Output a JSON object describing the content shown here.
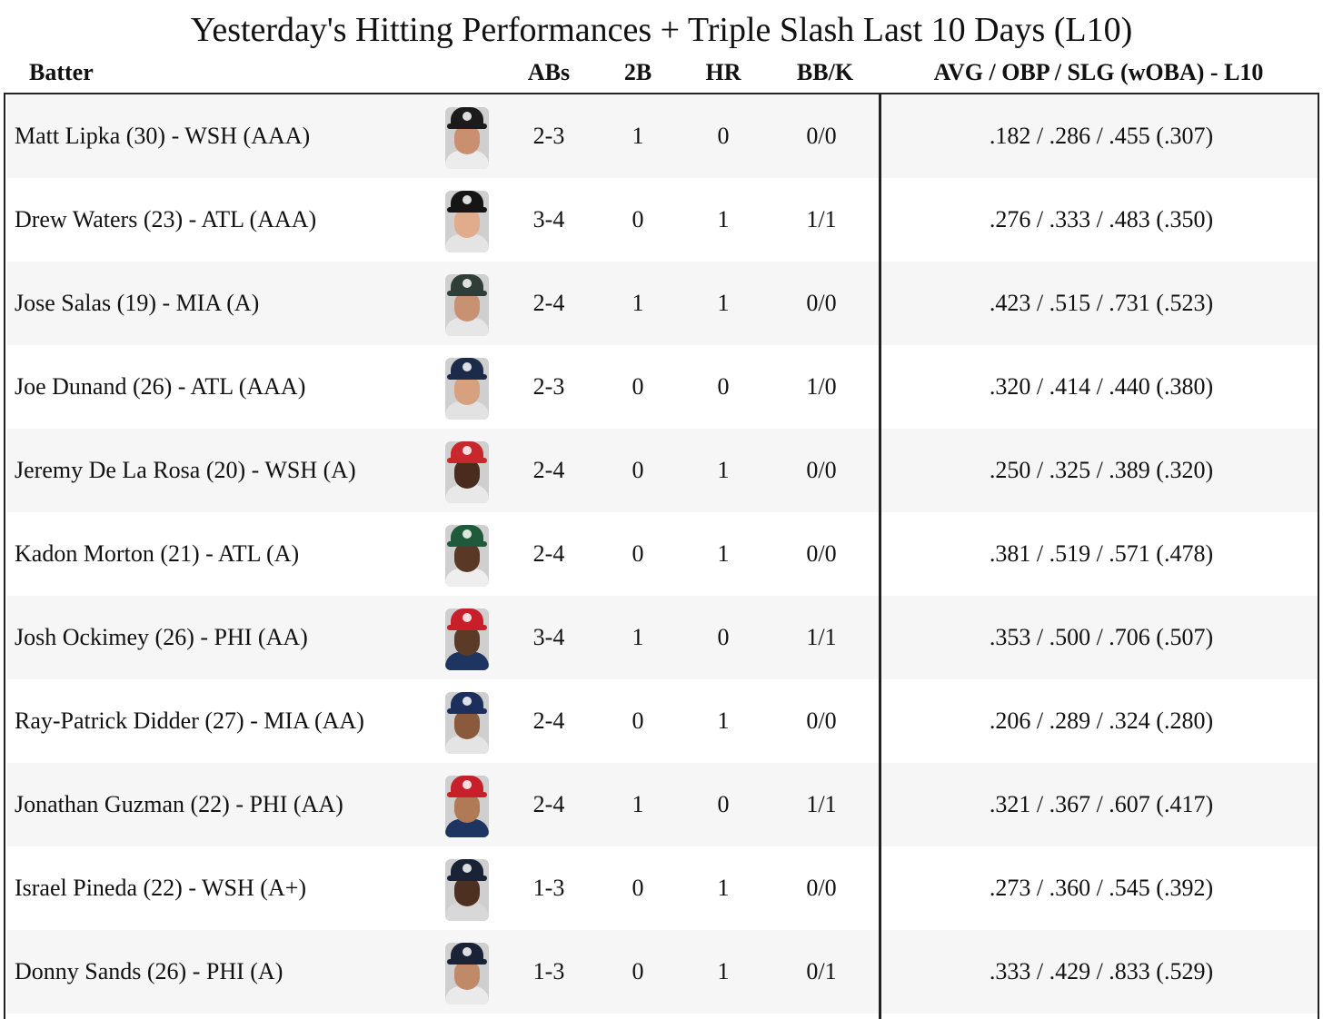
{
  "title": "Yesterday's Hitting Performances + Triple Slash Last 10 Days (L10)",
  "headers": {
    "batter": "Batter",
    "abs": "ABs",
    "doubles": "2B",
    "hr": "HR",
    "bbk": "BB/K",
    "slash": "AVG / OBP / SLG (wOBA) - L10"
  },
  "rows": [
    {
      "batter": "Matt Lipka (30) - WSH (AAA)",
      "abs": "2-3",
      "doubles": "1",
      "hr": "0",
      "bbk": "0/0",
      "slash": ".182 / .286 / .455 (.307)",
      "cap": "#1b1b1b",
      "skin": "#c98f6e",
      "jersey": "#ececec"
    },
    {
      "batter": "Drew Waters (23) - ATL (AAA)",
      "abs": "3-4",
      "doubles": "0",
      "hr": "1",
      "bbk": "1/1",
      "slash": ".276 / .333 / .483 (.350)",
      "cap": "#151515",
      "skin": "#e0ac8c",
      "jersey": "#e4e4e4"
    },
    {
      "batter": "Jose Salas (19) - MIA (A)",
      "abs": "2-4",
      "doubles": "1",
      "hr": "1",
      "bbk": "0/0",
      "slash": ".423 / .515 / .731 (.523)",
      "cap": "#2f3f37",
      "skin": "#c89272",
      "jersey": "#e6e6e6"
    },
    {
      "batter": "Joe Dunand (26) - ATL (AAA)",
      "abs": "2-3",
      "doubles": "0",
      "hr": "0",
      "bbk": "1/0",
      "slash": ".320 / .414 / .440 (.380)",
      "cap": "#1d2b4a",
      "skin": "#d7a07e",
      "jersey": "#e2e2e2"
    },
    {
      "batter": "Jeremy De La Rosa (20) - WSH (A)",
      "abs": "2-4",
      "doubles": "0",
      "hr": "1",
      "bbk": "0/0",
      "slash": ".250 / .325 / .389 (.320)",
      "cap": "#c8272e",
      "skin": "#4a2c1e",
      "jersey": "#e8e8e8"
    },
    {
      "batter": "Kadon Morton (21) - ATL (A)",
      "abs": "2-4",
      "doubles": "0",
      "hr": "1",
      "bbk": "0/0",
      "slash": ".381 / .519 / .571 (.478)",
      "cap": "#1f5a3a",
      "skin": "#5a3826",
      "jersey": "#eeeeee"
    },
    {
      "batter": "Josh Ockimey (26) - PHI (AA)",
      "abs": "3-4",
      "doubles": "1",
      "hr": "0",
      "bbk": "1/1",
      "slash": ".353 / .500 / .706 (.507)",
      "cap": "#c8202a",
      "skin": "#5c3a28",
      "jersey": "#1f3561"
    },
    {
      "batter": "Ray-Patrick Didder (27) - MIA (AA)",
      "abs": "2-4",
      "doubles": "0",
      "hr": "1",
      "bbk": "0/0",
      "slash": ".206 / .289 / .324 (.280)",
      "cap": "#1c2f5c",
      "skin": "#8a5a3c",
      "jersey": "#e4e4e4"
    },
    {
      "batter": "Jonathan Guzman (22) - PHI (AA)",
      "abs": "2-4",
      "doubles": "1",
      "hr": "0",
      "bbk": "1/1",
      "slash": ".321 / .367 / .607 (.417)",
      "cap": "#c8202a",
      "skin": "#b07a56",
      "jersey": "#1f3561"
    },
    {
      "batter": "Israel Pineda (22) - WSH (A+)",
      "abs": "1-3",
      "doubles": "0",
      "hr": "1",
      "bbk": "0/0",
      "slash": ".273 / .360 / .545 (.392)",
      "cap": "#1a2236",
      "skin": "#4e3020",
      "jersey": "#d8d8d8"
    },
    {
      "batter": "Donny Sands (26) - PHI (A)",
      "abs": "1-3",
      "doubles": "0",
      "hr": "1",
      "bbk": "0/1",
      "slash": ".333 / .429 / .833 (.529)",
      "cap": "#1a2236",
      "skin": "#c08a68",
      "jersey": "#eaeaea"
    }
  ]
}
